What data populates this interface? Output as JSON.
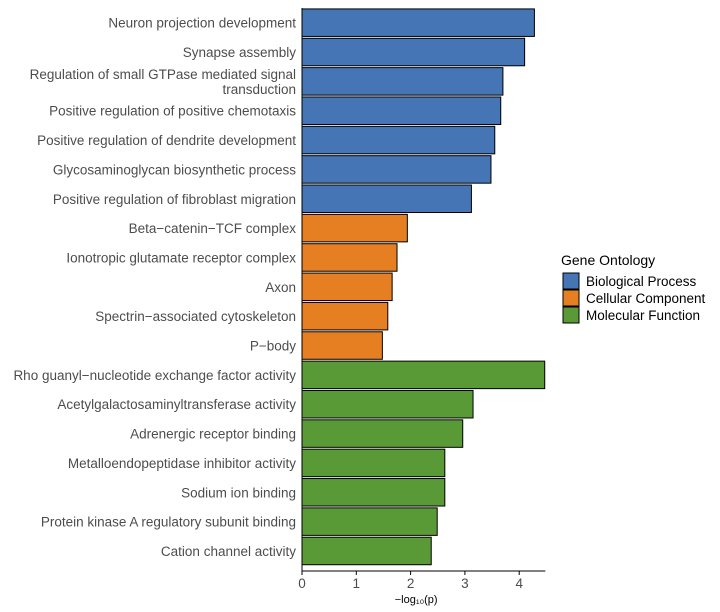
{
  "chart_data": {
    "type": "bar",
    "orientation": "horizontal",
    "xlabel": "−log₁₀(p)",
    "xlim": [
      0,
      4.5
    ],
    "xticks": [
      "0",
      "1",
      "2",
      "3",
      "4"
    ],
    "grid": false,
    "legend_placement": "right",
    "legend": {
      "title": "Gene Ontology",
      "entries": [
        {
          "name": "Biological Process",
          "color": "#4575b4"
        },
        {
          "name": "Cellular Component",
          "color": "#e67e22"
        },
        {
          "name": "Molecular Function",
          "color": "#5a9a36"
        }
      ]
    },
    "bars": [
      {
        "label": [
          "Neuron projection development"
        ],
        "value": 4.28,
        "group": 0
      },
      {
        "label": [
          "Synapse assembly"
        ],
        "value": 4.1,
        "group": 0
      },
      {
        "label": [
          "Regulation of small GTPase mediated signal",
          "transduction"
        ],
        "value": 3.7,
        "group": 0
      },
      {
        "label": [
          "Positive regulation of positive chemotaxis"
        ],
        "value": 3.66,
        "group": 0
      },
      {
        "label": [
          "Positive regulation of dendrite development"
        ],
        "value": 3.55,
        "group": 0
      },
      {
        "label": [
          "Glycosaminoglycan biosynthetic process"
        ],
        "value": 3.48,
        "group": 0
      },
      {
        "label": [
          "Positive regulation of fibroblast migration"
        ],
        "value": 3.12,
        "group": 0
      },
      {
        "label": [
          "Beta−catenin−TCF complex"
        ],
        "value": 1.94,
        "group": 1
      },
      {
        "label": [
          "Ionotropic glutamate receptor complex"
        ],
        "value": 1.75,
        "group": 1
      },
      {
        "label": [
          "Axon"
        ],
        "value": 1.66,
        "group": 1
      },
      {
        "label": [
          "Spectrin−associated cytoskeleton"
        ],
        "value": 1.58,
        "group": 1
      },
      {
        "label": [
          "P−body"
        ],
        "value": 1.48,
        "group": 1
      },
      {
        "label": [
          "Rho guanyl−nucleotide exchange factor activity"
        ],
        "value": 4.47,
        "group": 2
      },
      {
        "label": [
          "Acetylgalactosaminyltransferase activity"
        ],
        "value": 3.15,
        "group": 2
      },
      {
        "label": [
          "Adrenergic receptor binding"
        ],
        "value": 2.96,
        "group": 2
      },
      {
        "label": [
          "Metalloendopeptidase inhibitor activity"
        ],
        "value": 2.63,
        "group": 2
      },
      {
        "label": [
          "Sodium ion binding"
        ],
        "value": 2.63,
        "group": 2
      },
      {
        "label": [
          "Protein kinase A regulatory subunit binding"
        ],
        "value": 2.49,
        "group": 2
      },
      {
        "label": [
          "Cation channel activity"
        ],
        "value": 2.38,
        "group": 2
      }
    ]
  }
}
